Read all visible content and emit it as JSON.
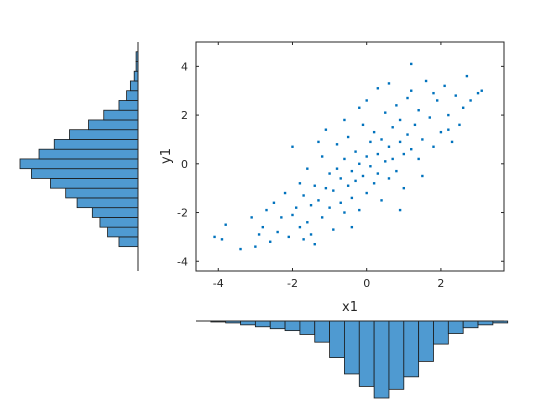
{
  "chart_data": [
    {
      "type": "scatter",
      "title": "",
      "xlabel": "x1",
      "ylabel": "y1",
      "xlim": [
        -4.6,
        3.7
      ],
      "ylim": [
        -4.4,
        5.0
      ],
      "xticks": [
        -4,
        -2,
        0,
        2
      ],
      "yticks": [
        -4,
        -2,
        0,
        2,
        4
      ],
      "xtick_labels": [
        "-4",
        "-2",
        "0",
        "2"
      ],
      "ytick_labels": [
        "-4",
        "-2",
        "0",
        "2",
        "4"
      ],
      "grid": false,
      "box": true,
      "marker": "point",
      "color": "#0072BD",
      "points": [
        [
          -4.1,
          -3.0
        ],
        [
          -3.9,
          -3.1
        ],
        [
          -3.8,
          -2.5
        ],
        [
          -3.4,
          -3.5
        ],
        [
          -3.1,
          -2.2
        ],
        [
          -3.0,
          -3.4
        ],
        [
          -2.8,
          -2.6
        ],
        [
          -2.6,
          -3.2
        ],
        [
          -2.5,
          -1.6
        ],
        [
          -2.4,
          -2.8
        ],
        [
          -2.3,
          -2.2
        ],
        [
          -2.2,
          -1.2
        ],
        [
          -2.1,
          -3.0
        ],
        [
          -2.0,
          -2.1
        ],
        [
          -2.0,
          0.7
        ],
        [
          -1.9,
          -1.8
        ],
        [
          -1.8,
          -0.8
        ],
        [
          -1.8,
          -2.6
        ],
        [
          -1.7,
          -1.3
        ],
        [
          -1.6,
          -2.4
        ],
        [
          -1.6,
          -0.2
        ],
        [
          -1.5,
          -1.7
        ],
        [
          -1.4,
          -3.3
        ],
        [
          -1.4,
          -0.9
        ],
        [
          -1.3,
          -1.5
        ],
        [
          -1.2,
          -2.2
        ],
        [
          -1.2,
          0.3
        ],
        [
          -1.1,
          -1.0
        ],
        [
          -1.1,
          1.4
        ],
        [
          -1.0,
          -1.8
        ],
        [
          -1.0,
          -0.4
        ],
        [
          -0.9,
          -2.7
        ],
        [
          -0.9,
          -1.1
        ],
        [
          -0.8,
          -0.2
        ],
        [
          -0.8,
          0.8
        ],
        [
          -0.7,
          -1.6
        ],
        [
          -0.7,
          -0.6
        ],
        [
          -0.6,
          0.2
        ],
        [
          -0.6,
          -2.0
        ],
        [
          -0.5,
          -0.9
        ],
        [
          -0.5,
          1.1
        ],
        [
          -0.4,
          -0.3
        ],
        [
          -0.4,
          -1.4
        ],
        [
          -0.3,
          0.5
        ],
        [
          -0.3,
          -0.7
        ],
        [
          -0.2,
          -1.9
        ],
        [
          -0.2,
          0.0
        ],
        [
          -0.1,
          1.6
        ],
        [
          -0.1,
          -0.5
        ],
        [
          0.0,
          0.3
        ],
        [
          0.0,
          -1.2
        ],
        [
          0.1,
          0.9
        ],
        [
          0.1,
          -0.1
        ],
        [
          0.2,
          -0.8
        ],
        [
          0.2,
          1.3
        ],
        [
          0.3,
          0.4
        ],
        [
          0.3,
          -0.4
        ],
        [
          0.4,
          1.0
        ],
        [
          0.4,
          -1.5
        ],
        [
          0.5,
          0.1
        ],
        [
          0.5,
          2.1
        ],
        [
          0.6,
          0.7
        ],
        [
          0.6,
          -0.6
        ],
        [
          0.7,
          1.5
        ],
        [
          0.7,
          0.2
        ],
        [
          0.8,
          -0.3
        ],
        [
          0.8,
          2.4
        ],
        [
          0.9,
          0.9
        ],
        [
          0.9,
          1.8
        ],
        [
          1.0,
          0.4
        ],
        [
          1.0,
          -1.0
        ],
        [
          1.1,
          1.2
        ],
        [
          1.1,
          2.7
        ],
        [
          1.2,
          0.6
        ],
        [
          1.2,
          3.0
        ],
        [
          1.3,
          1.6
        ],
        [
          1.4,
          0.2
        ],
        [
          1.4,
          2.2
        ],
        [
          1.5,
          1.0
        ],
        [
          1.6,
          3.4
        ],
        [
          1.7,
          1.9
        ],
        [
          1.8,
          0.7
        ],
        [
          1.9,
          2.6
        ],
        [
          2.0,
          1.3
        ],
        [
          2.1,
          3.2
        ],
        [
          2.2,
          2.0
        ],
        [
          2.3,
          0.9
        ],
        [
          2.4,
          2.8
        ],
        [
          2.5,
          1.6
        ],
        [
          2.6,
          2.3
        ],
        [
          2.7,
          3.6
        ],
        [
          2.8,
          2.6
        ],
        [
          3.0,
          2.9
        ],
        [
          3.1,
          3.0
        ],
        [
          1.2,
          4.1
        ],
        [
          -0.2,
          2.3
        ],
        [
          0.3,
          3.1
        ],
        [
          -0.6,
          1.8
        ],
        [
          -1.5,
          -2.9
        ],
        [
          -2.7,
          -1.9
        ],
        [
          0.9,
          -1.9
        ],
        [
          1.5,
          -0.5
        ],
        [
          -0.4,
          -2.6
        ],
        [
          -1.3,
          0.9
        ],
        [
          0.0,
          2.6
        ],
        [
          -2.9,
          -2.9
        ],
        [
          1.8,
          2.9
        ],
        [
          2.2,
          1.4
        ],
        [
          -1.7,
          -3.1
        ],
        [
          0.6,
          3.3
        ]
      ]
    },
    {
      "type": "bar",
      "orientation": "vertical",
      "direction": "downward",
      "title": "",
      "color": "#4F9AD1",
      "bins": [
        -4.2,
        -3.8,
        -3.4,
        -3.0,
        -2.6,
        -2.2,
        -1.8,
        -1.4,
        -1.0,
        -0.6,
        -0.2,
        0.2,
        0.6,
        1.0,
        1.4,
        1.8,
        2.2,
        2.6,
        3.0,
        3.4
      ],
      "values": [
        1,
        2,
        4,
        6,
        8,
        10,
        14,
        22,
        38,
        55,
        68,
        80,
        71,
        58,
        42,
        24,
        13,
        7,
        4,
        2
      ]
    },
    {
      "type": "bar",
      "orientation": "horizontal",
      "direction": "leftward",
      "title": "",
      "color": "#4F9AD1",
      "bins": [
        -3.4,
        -3.0,
        -2.6,
        -2.2,
        -1.8,
        -1.4,
        -1.0,
        -0.6,
        -0.2,
        0.2,
        0.6,
        1.0,
        1.4,
        1.8,
        2.2,
        2.6,
        3.0,
        3.4,
        3.8,
        4.2
      ],
      "values": [
        10,
        16,
        20,
        24,
        32,
        38,
        46,
        56,
        62,
        52,
        44,
        36,
        26,
        18,
        10,
        6,
        4,
        2,
        1,
        1
      ]
    }
  ]
}
